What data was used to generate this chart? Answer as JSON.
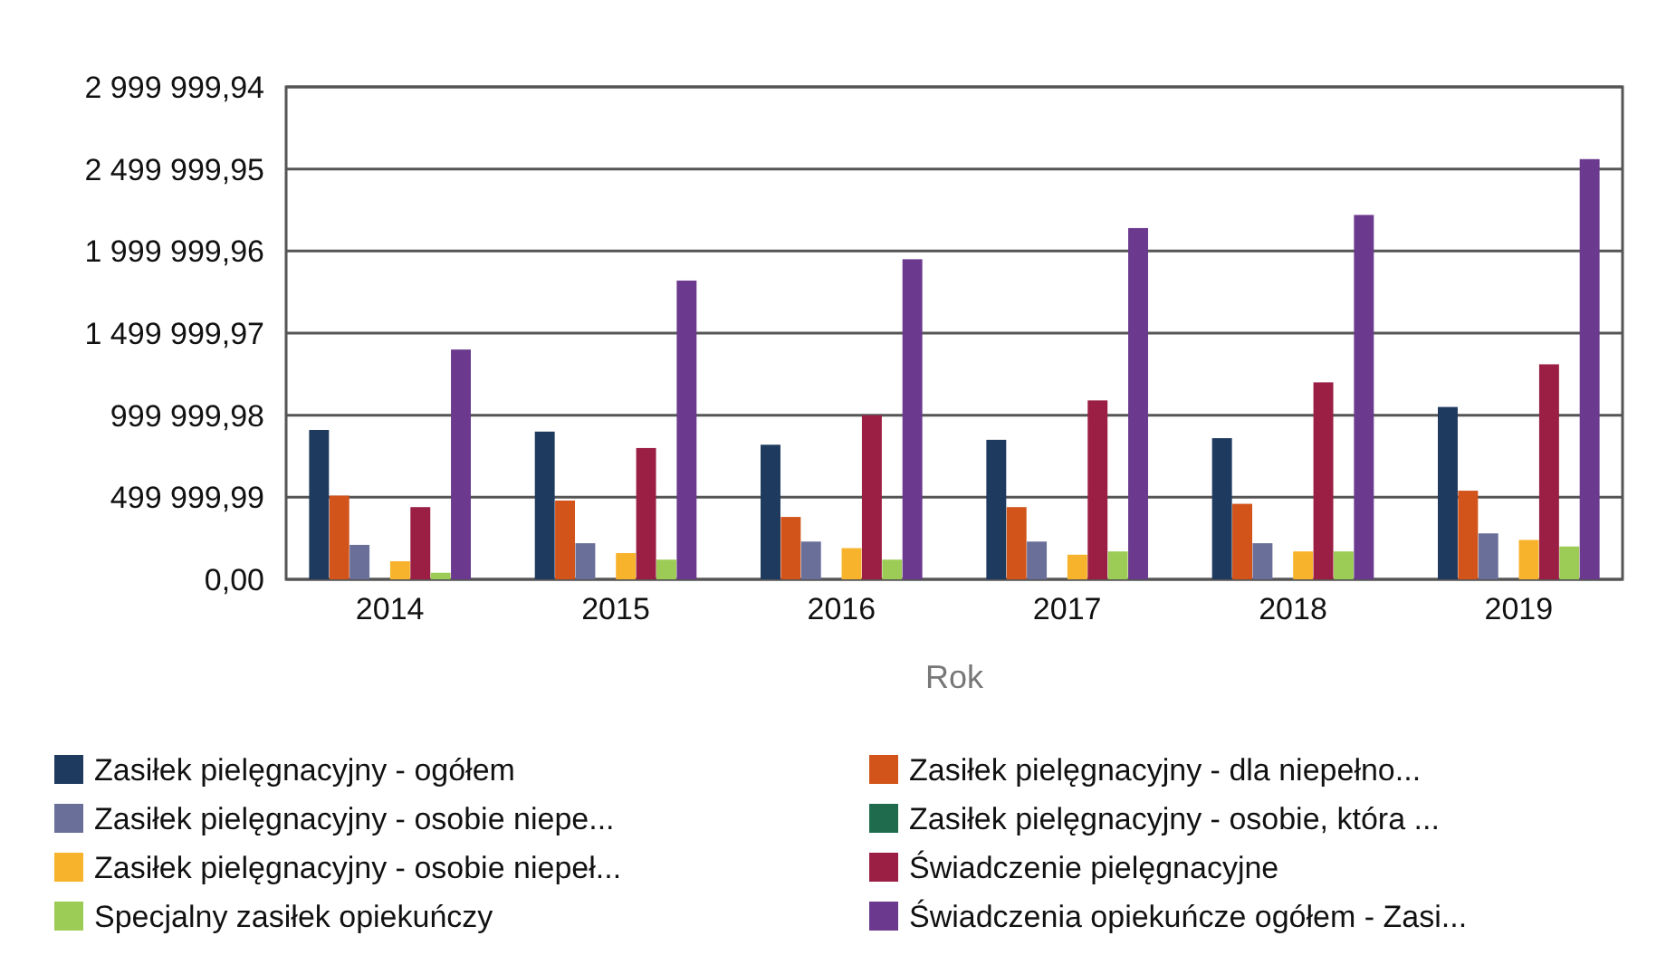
{
  "chart_data": {
    "type": "bar",
    "xlabel": "Rok",
    "categories": [
      "2014",
      "2015",
      "2016",
      "2017",
      "2018",
      "2019"
    ],
    "ylim": [
      0,
      2999999.94
    ],
    "yticks": [
      {
        "value": 0,
        "label": "0,00"
      },
      {
        "value": 499999.99,
        "label": "499 999,99"
      },
      {
        "value": 999999.98,
        "label": "999 999,98"
      },
      {
        "value": 1499999.97,
        "label": "1 499 999,97"
      },
      {
        "value": 1999999.96,
        "label": "1 999 999,96"
      },
      {
        "value": 2499999.95,
        "label": "2 499 999,95"
      },
      {
        "value": 2999999.94,
        "label": "2 999 999,94"
      }
    ],
    "grid": "y",
    "legend": "bottom",
    "series": [
      {
        "name": "Zasiłek pielęgnacyjny - ogółem",
        "color": "#1f3a5f",
        "values": [
          910000,
          900000,
          820000,
          850000,
          860000,
          1050000
        ]
      },
      {
        "name": "Zasiłek pielęgnacyjny - dla niepełno...",
        "color": "#d2541a",
        "values": [
          510000,
          480000,
          380000,
          440000,
          460000,
          540000
        ]
      },
      {
        "name": "Zasiłek pielęgnacyjny - osobie niepe...",
        "color": "#6a6f9a",
        "values": [
          210000,
          220000,
          230000,
          230000,
          220000,
          280000
        ]
      },
      {
        "name": "Zasiłek pielęgnacyjny - osobie, która ...",
        "color": "#1e6b4e",
        "values": [
          null,
          null,
          null,
          null,
          null,
          null
        ]
      },
      {
        "name": "Zasiłek pielęgnacyjny - osobie niepeł...",
        "color": "#f7b32b",
        "values": [
          110000,
          160000,
          190000,
          150000,
          170000,
          240000
        ]
      },
      {
        "name": "Świadczenie pielęgnacyjne",
        "color": "#9b1f45",
        "values": [
          440000,
          800000,
          1000000,
          1090000,
          1200000,
          1310000
        ]
      },
      {
        "name": "Specjalny zasiłek opiekuńczy",
        "color": "#9ccc55",
        "values": [
          40000,
          120000,
          120000,
          170000,
          170000,
          200000
        ]
      },
      {
        "name": "Świadczenia opiekuńcze ogółem - Zasi...",
        "color": "#6b3a8f",
        "values": [
          1400000,
          1820000,
          1950000,
          2140000,
          2220000,
          2560000
        ]
      }
    ]
  }
}
